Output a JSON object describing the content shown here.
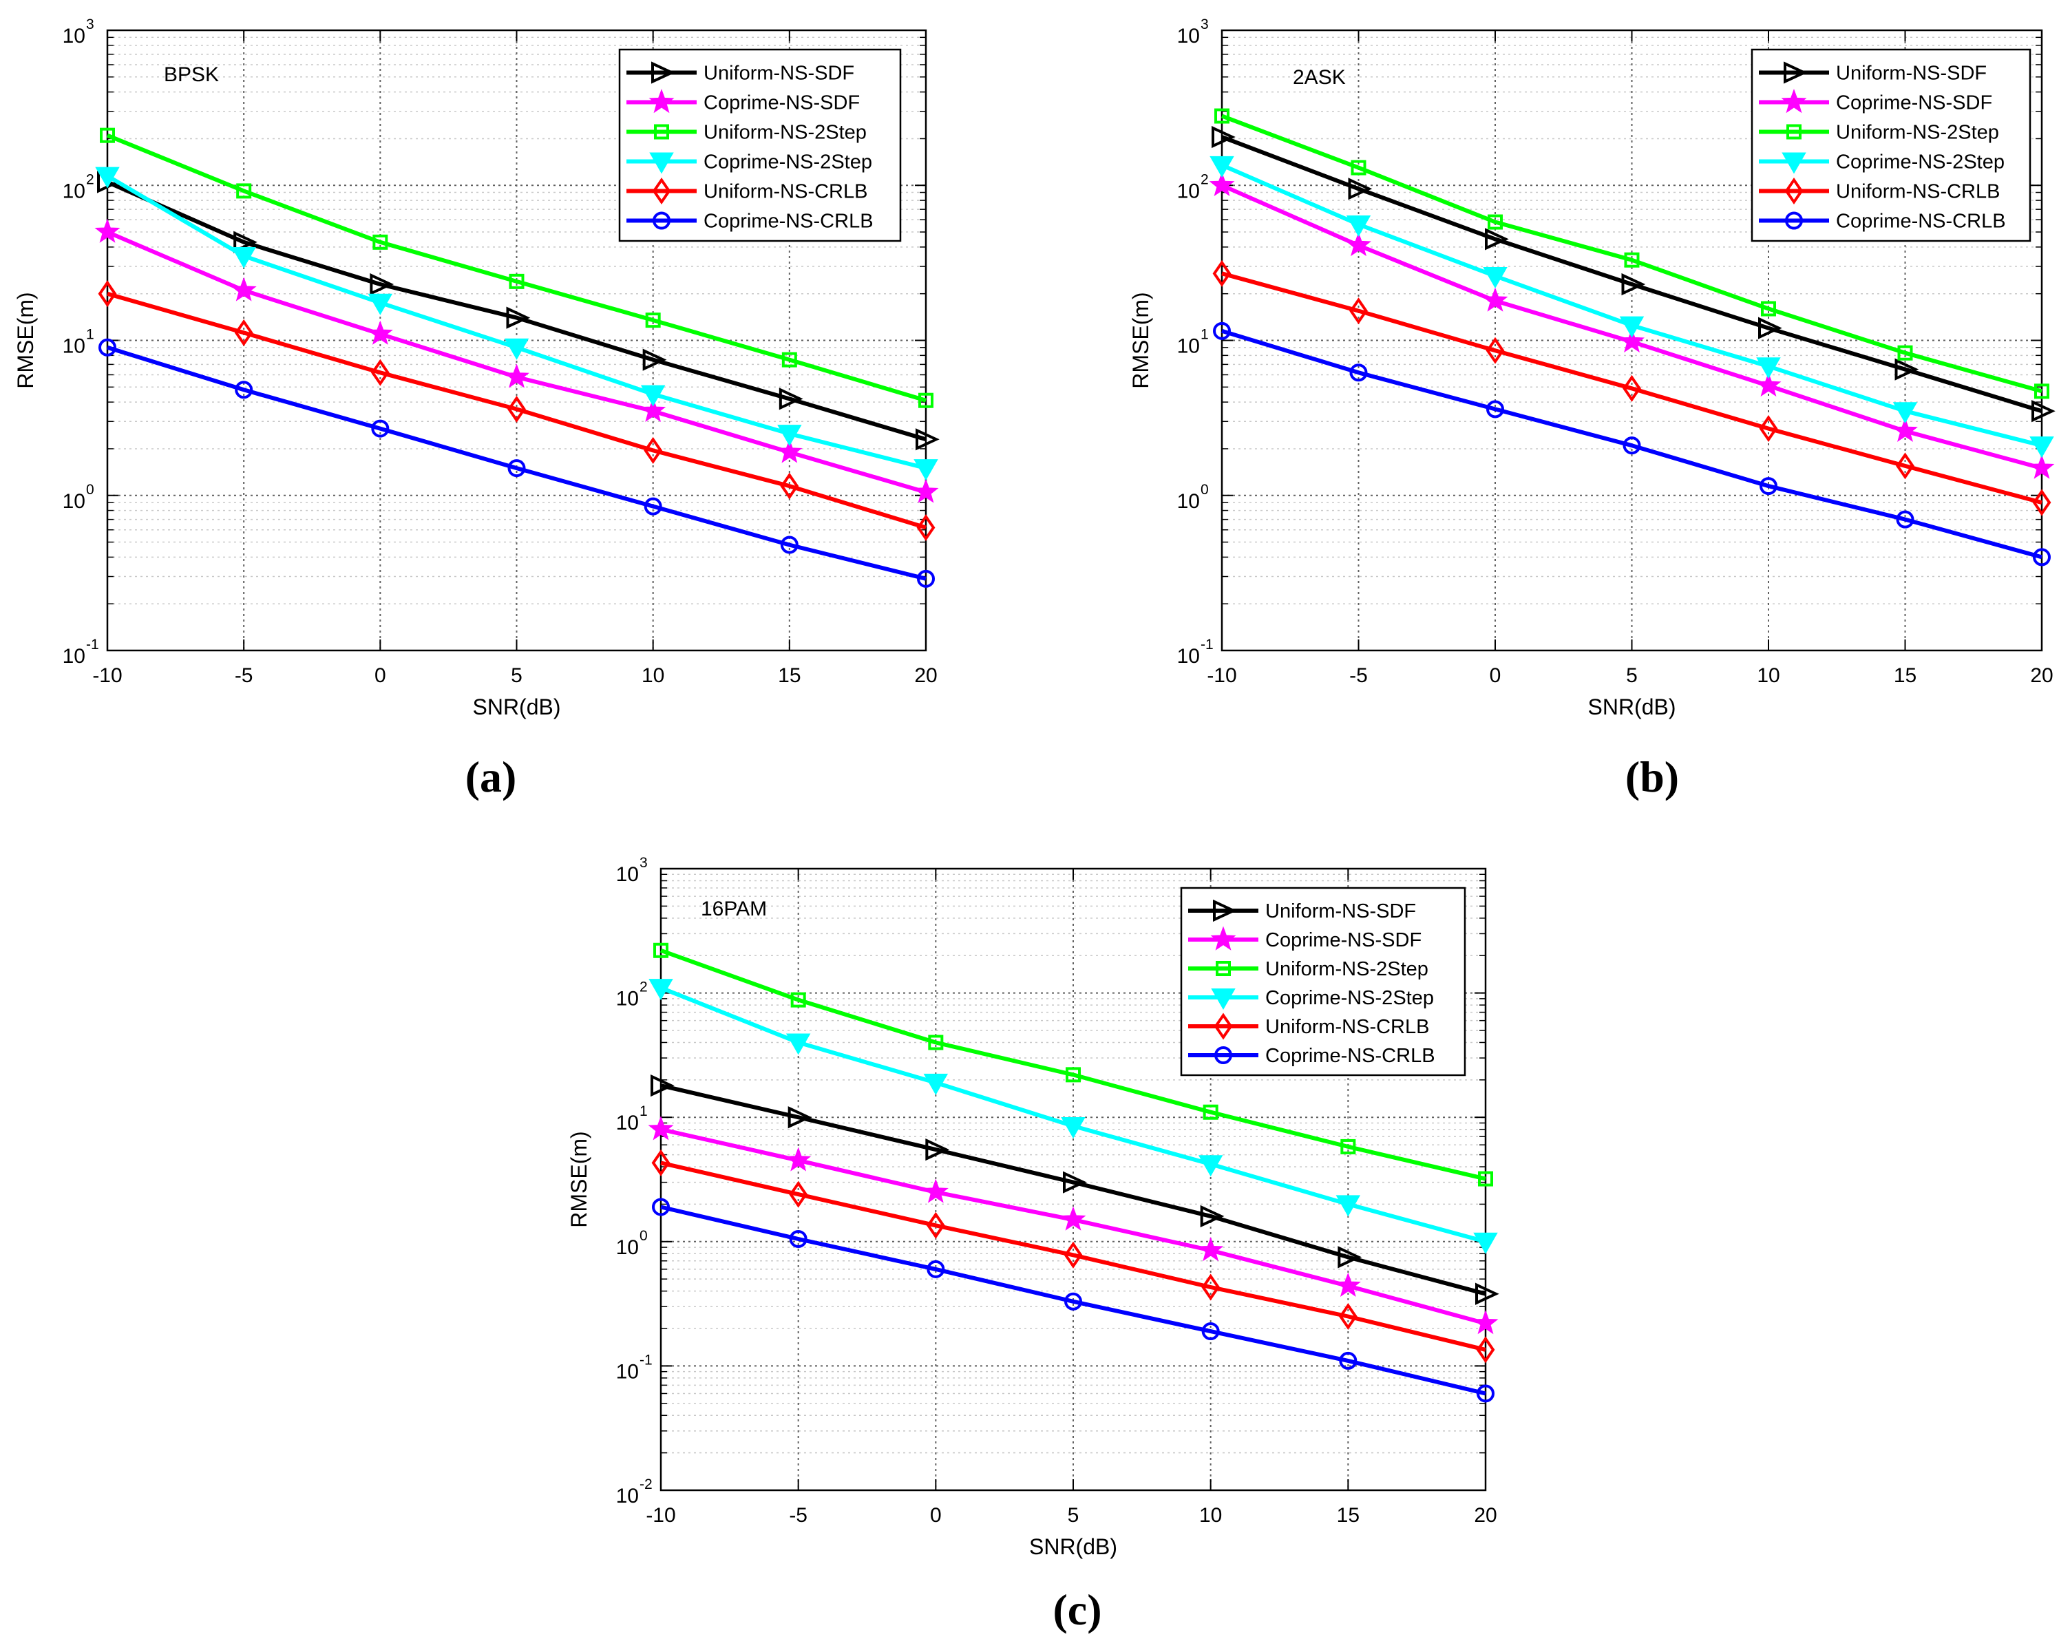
{
  "chart_data": [
    {
      "type": "line",
      "panel_label": "(a)",
      "annotation": "BPSK",
      "xlabel": "SNR(dB)",
      "ylabel": "RMSE(m)",
      "yscale": "log",
      "xlim": [
        -10,
        20
      ],
      "ylim": [
        0.1,
        1000
      ],
      "x_ticks": [
        "-10",
        "-5",
        "0",
        "5",
        "10",
        "15",
        "20"
      ],
      "y_ticks": [
        {
          "base": "10",
          "exp": "-1"
        },
        {
          "base": "10",
          "exp": "0"
        },
        {
          "base": "10",
          "exp": "1"
        },
        {
          "base": "10",
          "exp": "2"
        },
        {
          "base": "10",
          "exp": "3"
        }
      ],
      "grid": true,
      "legend_position": "top-right",
      "x": [
        -10,
        -5,
        0,
        5,
        10,
        15,
        20
      ],
      "series": [
        {
          "name": "Uniform-NS-SDF",
          "color": "#000000",
          "marker": "triangle-right",
          "values": [
            105,
            43,
            23,
            14,
            7.5,
            4.2,
            2.3
          ]
        },
        {
          "name": "Coprime-NS-SDF",
          "color": "#ff00ff",
          "marker": "star",
          "values": [
            50,
            21,
            11,
            5.8,
            3.5,
            1.9,
            1.05
          ]
        },
        {
          "name": "Uniform-NS-2Step",
          "color": "#00ff00",
          "marker": "square",
          "values": [
            210,
            92,
            43,
            24,
            13.5,
            7.5,
            4.1
          ]
        },
        {
          "name": "Coprime-NS-2Step",
          "color": "#00ffff",
          "marker": "triangle-down",
          "values": [
            115,
            35,
            17.5,
            9,
            4.5,
            2.5,
            1.5
          ]
        },
        {
          "name": "Uniform-NS-CRLB",
          "color": "#ff0000",
          "marker": "diamond",
          "values": [
            20,
            11.2,
            6.2,
            3.6,
            1.95,
            1.15,
            0.62
          ]
        },
        {
          "name": "Coprime-NS-CRLB",
          "color": "#0000ff",
          "marker": "circle",
          "values": [
            9,
            4.8,
            2.7,
            1.5,
            0.85,
            0.48,
            0.29
          ]
        }
      ]
    },
    {
      "type": "line",
      "panel_label": "(b)",
      "annotation": "2ASK",
      "xlabel": "SNR(dB)",
      "ylabel": "RMSE(m)",
      "yscale": "log",
      "xlim": [
        -10,
        20
      ],
      "ylim": [
        0.1,
        1000
      ],
      "x_ticks": [
        "-10",
        "-5",
        "0",
        "5",
        "10",
        "15",
        "20"
      ],
      "y_ticks": [
        {
          "base": "10",
          "exp": "-1"
        },
        {
          "base": "10",
          "exp": "0"
        },
        {
          "base": "10",
          "exp": "1"
        },
        {
          "base": "10",
          "exp": "2"
        },
        {
          "base": "10",
          "exp": "3"
        }
      ],
      "grid": true,
      "legend_position": "top-right",
      "x": [
        -10,
        -5,
        0,
        5,
        10,
        15,
        20
      ],
      "series": [
        {
          "name": "Uniform-NS-SDF",
          "color": "#000000",
          "marker": "triangle-right",
          "values": [
            205,
            95,
            45,
            23,
            12,
            6.5,
            3.5
          ]
        },
        {
          "name": "Coprime-NS-SDF",
          "color": "#ff00ff",
          "marker": "star",
          "values": [
            100,
            41,
            18,
            9.8,
            5.1,
            2.6,
            1.5
          ]
        },
        {
          "name": "Uniform-NS-2Step",
          "color": "#00ff00",
          "marker": "square",
          "values": [
            280,
            130,
            58,
            33,
            16,
            8.3,
            4.7
          ]
        },
        {
          "name": "Coprime-NS-2Step",
          "color": "#00ffff",
          "marker": "triangle-down",
          "values": [
            135,
            56,
            26,
            12.5,
            6.8,
            3.5,
            2.1
          ]
        },
        {
          "name": "Uniform-NS-CRLB",
          "color": "#ff0000",
          "marker": "diamond",
          "values": [
            27,
            15.5,
            8.6,
            4.9,
            2.7,
            1.55,
            0.9
          ]
        },
        {
          "name": "Coprime-NS-CRLB",
          "color": "#0000ff",
          "marker": "circle",
          "values": [
            11.5,
            6.2,
            3.6,
            2.1,
            1.15,
            0.7,
            0.4
          ]
        }
      ]
    },
    {
      "type": "line",
      "panel_label": "(c)",
      "annotation": "16PAM",
      "xlabel": "SNR(dB)",
      "ylabel": "RMSE(m)",
      "yscale": "log",
      "xlim": [
        -10,
        20
      ],
      "ylim": [
        0.01,
        1000
      ],
      "x_ticks": [
        "-10",
        "-5",
        "0",
        "5",
        "10",
        "15",
        "20"
      ],
      "y_ticks": [
        {
          "base": "10",
          "exp": "-2"
        },
        {
          "base": "10",
          "exp": "-1"
        },
        {
          "base": "10",
          "exp": "0"
        },
        {
          "base": "10",
          "exp": "1"
        },
        {
          "base": "10",
          "exp": "2"
        },
        {
          "base": "10",
          "exp": "3"
        }
      ],
      "grid": true,
      "legend_position": "top-right",
      "x": [
        -10,
        -5,
        0,
        5,
        10,
        15,
        20
      ],
      "series": [
        {
          "name": "Uniform-NS-SDF",
          "color": "#000000",
          "marker": "triangle-right",
          "values": [
            18,
            10,
            5.5,
            3,
            1.6,
            0.75,
            0.38
          ]
        },
        {
          "name": "Coprime-NS-SDF",
          "color": "#ff00ff",
          "marker": "star",
          "values": [
            8,
            4.5,
            2.5,
            1.5,
            0.85,
            0.44,
            0.22
          ]
        },
        {
          "name": "Uniform-NS-2Step",
          "color": "#00ff00",
          "marker": "square",
          "values": [
            220,
            88,
            40,
            22,
            11,
            5.8,
            3.2
          ]
        },
        {
          "name": "Coprime-NS-2Step",
          "color": "#00ffff",
          "marker": "triangle-down",
          "values": [
            110,
            40,
            19,
            8.5,
            4.2,
            2,
            1
          ]
        },
        {
          "name": "Uniform-NS-CRLB",
          "color": "#ff0000",
          "marker": "diamond",
          "values": [
            4.3,
            2.4,
            1.35,
            0.78,
            0.43,
            0.25,
            0.135
          ]
        },
        {
          "name": "Coprime-NS-CRLB",
          "color": "#0000ff",
          "marker": "circle",
          "values": [
            1.9,
            1.05,
            0.6,
            0.33,
            0.19,
            0.11,
            0.06
          ]
        }
      ]
    }
  ]
}
